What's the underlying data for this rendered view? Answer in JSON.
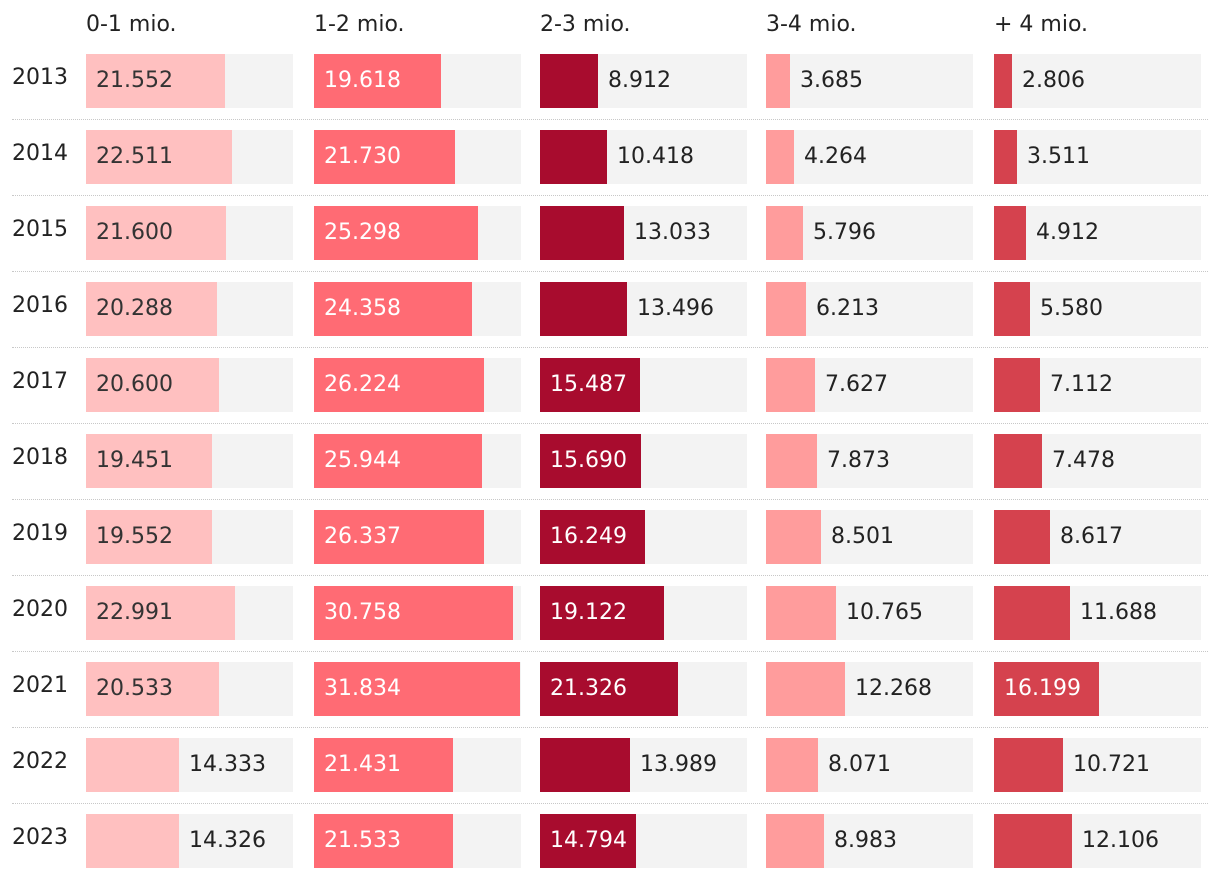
{
  "chart_data": {
    "type": "table",
    "title": "",
    "columns": [
      "0-1 mio.",
      "1-2 mio.",
      "2-3 mio.",
      "3-4 mio.",
      "+ 4 mio."
    ],
    "column_colors": [
      "#ffc0c0",
      "#ff6b74",
      "#a80c2e",
      "#ff9c9c",
      "#d5424e"
    ],
    "years": [
      "2013",
      "2014",
      "2015",
      "2016",
      "2017",
      "2018",
      "2019",
      "2020",
      "2021",
      "2022",
      "2023"
    ],
    "series": [
      {
        "name": "0-1 mio.",
        "values": [
          21552,
          22511,
          21600,
          20288,
          20600,
          19451,
          19552,
          22991,
          20533,
          14333,
          14326
        ],
        "labels": [
          "21.552",
          "22.511",
          "21.600",
          "20.288",
          "20.600",
          "19.451",
          "19.552",
          "22.991",
          "20.533",
          "14.333",
          "14.326"
        ]
      },
      {
        "name": "1-2 mio.",
        "values": [
          19618,
          21730,
          25298,
          24358,
          26224,
          25944,
          26337,
          30758,
          31834,
          21431,
          21533
        ],
        "labels": [
          "19.618",
          "21.730",
          "25.298",
          "24.358",
          "26.224",
          "25.944",
          "26.337",
          "30.758",
          "31.834",
          "21.431",
          "21.533"
        ]
      },
      {
        "name": "2-3 mio.",
        "values": [
          8912,
          10418,
          13033,
          13496,
          15487,
          15690,
          16249,
          19122,
          21326,
          13989,
          14794
        ],
        "labels": [
          "8.912",
          "10.418",
          "13.033",
          "13.496",
          "15.487",
          "15.690",
          "16.249",
          "19.122",
          "21.326",
          "13.989",
          "14.794"
        ]
      },
      {
        "name": "3-4 mio.",
        "values": [
          3685,
          4264,
          5796,
          6213,
          7627,
          7873,
          8501,
          10765,
          12268,
          8071,
          8983
        ],
        "labels": [
          "3.685",
          "4.264",
          "5.796",
          "6.213",
          "7.627",
          "7.873",
          "8.501",
          "10.765",
          "12.268",
          "8.071",
          "8.983"
        ]
      },
      {
        "name": "+ 4 mio.",
        "values": [
          2806,
          3511,
          4912,
          5580,
          7112,
          7478,
          8617,
          11688,
          16199,
          10721,
          12106
        ],
        "labels": [
          "2.806",
          "3.511",
          "4.912",
          "5.580",
          "7.112",
          "7.478",
          "8.617",
          "11.688",
          "16.199",
          "10.721",
          "12.106"
        ]
      }
    ],
    "xlim": [
      0,
      32000
    ]
  }
}
